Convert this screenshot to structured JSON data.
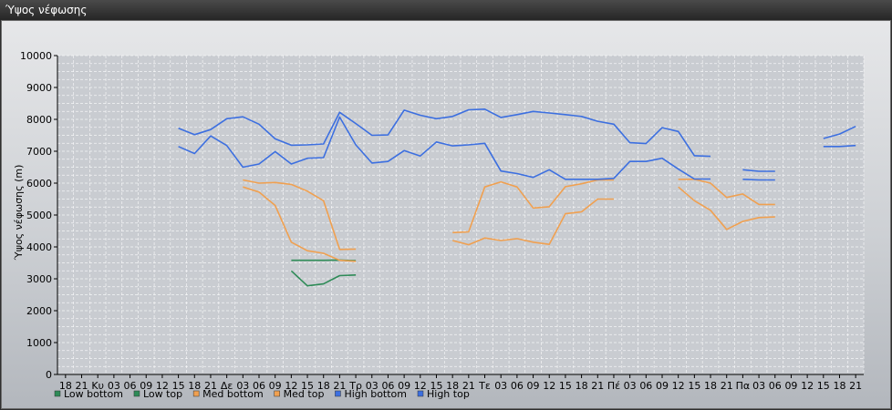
{
  "window": {
    "title": "Ύψος νέφωσης"
  },
  "colors": {
    "low": "#2e8b57",
    "med": "#f0a050",
    "high": "#3c6fe0",
    "grid": "#ffffff",
    "plot_bg": "#c9ccd1"
  },
  "chart_data": {
    "type": "line",
    "title": "",
    "ylabel": "Ύψος νέφωσης (m)",
    "xlabel": "",
    "ylim": [
      0,
      10000
    ],
    "yticks": [
      0,
      1000,
      2000,
      3000,
      4000,
      5000,
      6000,
      7000,
      8000,
      9000,
      10000
    ],
    "grid": true,
    "legend_position": "bottom-left",
    "categories": [
      "18",
      "21",
      "Κυ",
      "03",
      "06",
      "09",
      "12",
      "15",
      "18",
      "21",
      "Δε",
      "03",
      "06",
      "09",
      "12",
      "15",
      "18",
      "21",
      "Τρ",
      "03",
      "06",
      "09",
      "12",
      "15",
      "18",
      "21",
      "Τε",
      "03",
      "06",
      "09",
      "12",
      "15",
      "18",
      "21",
      "Πέ",
      "03",
      "06",
      "09",
      "12",
      "15",
      "18",
      "21",
      "Πα",
      "03",
      "06",
      "09",
      "12",
      "15",
      "18",
      "21"
    ],
    "series": [
      {
        "name": "Low bottom",
        "color": "#2e8b57",
        "values": [
          null,
          null,
          null,
          null,
          null,
          null,
          null,
          null,
          null,
          null,
          null,
          null,
          null,
          null,
          3250,
          2780,
          2840,
          3100,
          3120,
          null,
          null,
          null,
          null,
          null,
          null,
          null,
          null,
          null,
          null,
          null,
          null,
          null,
          null,
          null,
          null,
          null,
          null,
          null,
          null,
          null,
          null,
          null,
          null,
          null,
          null,
          null,
          null,
          null,
          null,
          null
        ]
      },
      {
        "name": "Low top",
        "color": "#2e8b57",
        "values": [
          null,
          null,
          null,
          null,
          null,
          null,
          null,
          null,
          null,
          null,
          null,
          null,
          null,
          null,
          3580,
          3580,
          3580,
          3590,
          3570,
          null,
          null,
          null,
          null,
          null,
          null,
          null,
          null,
          null,
          null,
          null,
          null,
          null,
          null,
          null,
          null,
          null,
          null,
          null,
          null,
          null,
          null,
          null,
          null,
          null,
          null,
          null,
          null,
          null,
          null,
          null
        ]
      },
      {
        "name": "Med bottom",
        "color": "#f0a050",
        "values": [
          null,
          null,
          null,
          null,
          null,
          null,
          null,
          null,
          null,
          null,
          null,
          5880,
          5720,
          5300,
          4150,
          3880,
          3800,
          3580,
          3550,
          null,
          null,
          null,
          null,
          null,
          4200,
          4070,
          4280,
          4200,
          4260,
          4150,
          4080,
          5040,
          5100,
          5500,
          5500,
          null,
          null,
          null,
          5880,
          5450,
          5150,
          4550,
          4800,
          4920,
          4940,
          null,
          null,
          null,
          null,
          null
        ]
      },
      {
        "name": "Med top",
        "color": "#f0a050",
        "values": [
          null,
          null,
          null,
          null,
          null,
          null,
          null,
          null,
          null,
          null,
          null,
          6100,
          6000,
          6020,
          5960,
          5750,
          5450,
          3920,
          3930,
          null,
          null,
          null,
          null,
          null,
          4450,
          4470,
          5880,
          6040,
          5880,
          5220,
          5260,
          5890,
          5980,
          6100,
          6100,
          null,
          null,
          null,
          6120,
          6120,
          6000,
          5550,
          5660,
          5330,
          5330,
          null,
          null,
          null,
          null,
          null
        ]
      },
      {
        "name": "High bottom",
        "color": "#3c6fe0",
        "values": [
          null,
          null,
          null,
          null,
          null,
          null,
          null,
          7150,
          6930,
          7480,
          7180,
          6500,
          6600,
          6990,
          6600,
          6780,
          6800,
          8070,
          7200,
          6630,
          6680,
          7020,
          6850,
          7290,
          7170,
          7200,
          7250,
          6380,
          6300,
          6180,
          6420,
          6120,
          6120,
          6120,
          6150,
          6680,
          6680,
          6780,
          6440,
          6130,
          6130,
          null,
          6120,
          6100,
          6100,
          null,
          null,
          7150,
          7150,
          7180
        ]
      },
      {
        "name": "High top",
        "color": "#3c6fe0",
        "values": [
          null,
          null,
          null,
          null,
          null,
          null,
          null,
          7720,
          7520,
          7680,
          8020,
          8080,
          7850,
          7390,
          7190,
          7200,
          7230,
          8220,
          7870,
          7500,
          7510,
          8290,
          8130,
          8020,
          8090,
          8300,
          8320,
          8060,
          8150,
          8250,
          8200,
          8150,
          8090,
          7940,
          7850,
          7270,
          7240,
          7740,
          7620,
          6860,
          6840,
          null,
          6420,
          6370,
          6370,
          null,
          null,
          7400,
          7540,
          7780
        ]
      }
    ]
  }
}
